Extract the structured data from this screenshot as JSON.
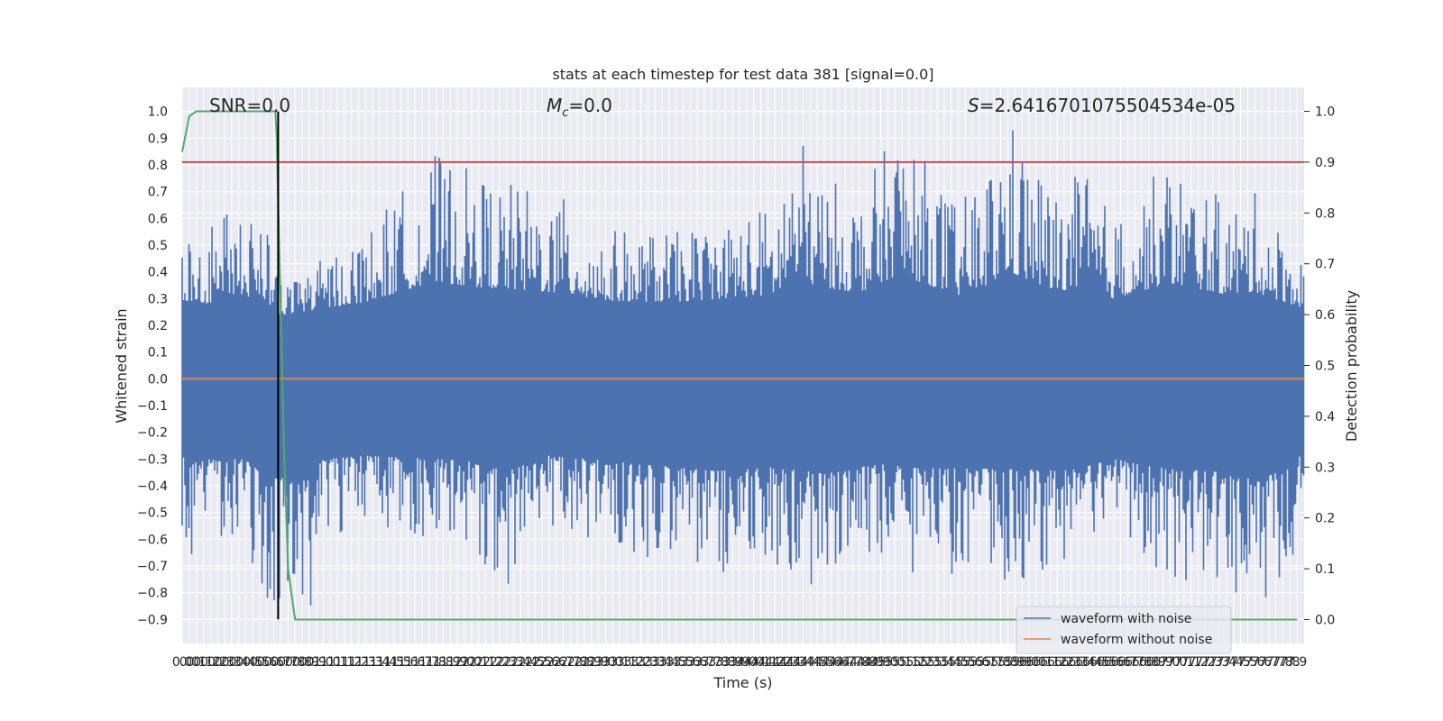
{
  "chart_data": {
    "type": "line",
    "title": "stats at each timestep for test data 381 [signal=0.0]",
    "xlabel": "Time (s)",
    "ylabel": "Whitened strain",
    "y2label": "Detection probability",
    "xlim": [
      0.0,
      7.95
    ],
    "ylim": [
      -0.99,
      1.09
    ],
    "y2lim": [
      -0.047,
      1.047
    ],
    "x_ticks": [
      0.0,
      0.05,
      0.1,
      0.15,
      0.2,
      0.25,
      0.3,
      0.35,
      0.4,
      0.45,
      0.5,
      0.55,
      0.6,
      0.65,
      0.7,
      0.75,
      0.8,
      0.85,
      0.9,
      0.95,
      1.0,
      1.05,
      1.1,
      1.15,
      1.2,
      1.25,
      1.3,
      1.35,
      1.4,
      1.45,
      1.5,
      1.55,
      1.6,
      1.65,
      1.7,
      1.75,
      1.8,
      1.85,
      1.9,
      1.95,
      2.0,
      2.05,
      2.1,
      2.15,
      2.2,
      2.25,
      2.3,
      2.35,
      2.4,
      2.45,
      2.5,
      2.55,
      2.6,
      2.65,
      2.7,
      2.75,
      2.8,
      2.85,
      2.9,
      2.95,
      3.0,
      3.05,
      3.1,
      3.15,
      3.2,
      3.25,
      3.3,
      3.35,
      3.4,
      3.45,
      3.5,
      3.55,
      3.6,
      3.65,
      3.7,
      3.75,
      3.8,
      3.85,
      3.9,
      3.95,
      4.0,
      4.05,
      4.1,
      4.15,
      4.2,
      4.25,
      4.3,
      4.35,
      4.4,
      4.45,
      4.5,
      4.55,
      4.6,
      4.65,
      4.7,
      4.75,
      4.8,
      4.85,
      4.9,
      4.95,
      5.0,
      5.05,
      5.1,
      5.15,
      5.2,
      5.25,
      5.3,
      5.35,
      5.4,
      5.45,
      5.5,
      5.55,
      5.6,
      5.65,
      5.7,
      5.75,
      5.8,
      5.85,
      5.9,
      5.95,
      6.0,
      6.05,
      6.1,
      6.15,
      6.2,
      6.25,
      6.3,
      6.35,
      6.4,
      6.45,
      6.5,
      6.55,
      6.6,
      6.65,
      6.7,
      6.75,
      6.8,
      6.85,
      6.9,
      6.95,
      7.0,
      7.05,
      7.1,
      7.15,
      7.2,
      7.25,
      7.3,
      7.35,
      7.4,
      7.45,
      7.5,
      7.55,
      7.6,
      7.65,
      7.7,
      7.75,
      7.8,
      7.85,
      7.9
    ],
    "x_tick_labels": [
      "0.0",
      "0.0",
      "0.1",
      "0.1",
      "0.2",
      "0.2",
      "0.3",
      "0.3",
      "0.4",
      "0.4",
      "0.5",
      "0.5",
      "0.6",
      "0.6",
      "0.7",
      "0.7",
      "0.8",
      "0.8",
      "0.9",
      "0.9",
      "1.0",
      "1.0",
      "1.1",
      "1.1",
      "1.2",
      "1.2",
      "1.3",
      "1.3",
      "1.4",
      "1.4",
      "1.5",
      "1.5",
      "1.6",
      "1.6",
      "1.7",
      "1.7",
      "1.8",
      "1.8",
      "1.9",
      "1.9",
      "2.0",
      "2.0",
      "2.1",
      "2.1",
      "2.2",
      "2.2",
      "2.3",
      "2.3",
      "2.4",
      "2.4",
      "2.5",
      "2.5",
      "2.6",
      "2.6",
      "2.7",
      "2.7",
      "2.8",
      "2.8",
      "2.9",
      "2.9",
      "3.0",
      "3.0",
      "3.1",
      "3.1",
      "3.2",
      "3.2",
      "3.3",
      "3.3",
      "3.4",
      "3.4",
      "3.5",
      "3.5",
      "3.6",
      "3.6",
      "3.7",
      "3.7",
      "3.8",
      "3.8",
      "3.9",
      "3.9",
      "4.0",
      "4.0",
      "4.1",
      "4.1",
      "4.2",
      "4.2",
      "4.3",
      "4.3",
      "4.4",
      "4.4",
      "4.5",
      "4.5",
      "4.6",
      "4.6",
      "4.7",
      "4.7",
      "4.8",
      "4.8",
      "4.9",
      "4.9",
      "5.0",
      "5.0",
      "5.1",
      "5.1",
      "5.2",
      "5.2",
      "5.3",
      "5.3",
      "5.4",
      "5.4",
      "5.5",
      "5.5",
      "5.6",
      "5.6",
      "5.7",
      "5.7",
      "5.8",
      "5.8",
      "5.9",
      "5.9",
      "6.0",
      "6.0",
      "6.1",
      "6.1",
      "6.2",
      "6.2",
      "6.3",
      "6.3",
      "6.4",
      "6.4",
      "6.5",
      "6.5",
      "6.6",
      "6.6",
      "6.7",
      "6.7",
      "6.8",
      "6.8",
      "6.9",
      "6.9",
      "7.0",
      "7.0",
      "7.1",
      "7.1",
      "7.2",
      "7.2",
      "7.3",
      "7.3",
      "7.4",
      "7.4",
      "7.5",
      "7.5",
      "7.6",
      "7.6",
      "7.7",
      "7.7",
      "7.8",
      "7.8",
      "7.9"
    ],
    "y_ticks": [
      -0.9,
      -0.8,
      -0.7,
      -0.6,
      -0.5,
      -0.4,
      -0.3,
      -0.2,
      -0.1,
      0.0,
      0.1,
      0.2,
      0.3,
      0.4,
      0.5,
      0.6,
      0.7,
      0.8,
      0.9,
      1.0
    ],
    "y_tick_labels": [
      "−0.9",
      "−0.8",
      "−0.7",
      "−0.6",
      "−0.5",
      "−0.4",
      "−0.3",
      "−0.2",
      "−0.1",
      "0.0",
      "0.1",
      "0.2",
      "0.3",
      "0.4",
      "0.5",
      "0.6",
      "0.7",
      "0.8",
      "0.9",
      "1.0"
    ],
    "y2_ticks": [
      0.0,
      0.1,
      0.2,
      0.3,
      0.4,
      0.5,
      0.6,
      0.7,
      0.8,
      0.9,
      1.0
    ],
    "y2_tick_labels": [
      "0.0",
      "0.1",
      "0.2",
      "0.3",
      "0.4",
      "0.5",
      "0.6",
      "0.7",
      "0.8",
      "0.9",
      "1.0"
    ],
    "grid": true,
    "legend_position": "lower-right",
    "annotations": {
      "snr": "SNR=0.0",
      "mc_symbol": "M",
      "mc_subscript": "c",
      "mc_value": "=0.0",
      "s_symbol": "S",
      "s_value": "=2.6416701075504534e-05"
    },
    "series": [
      {
        "name": "waveform with noise",
        "color": "#4c72b0",
        "axis": "left",
        "envelope_upper": [
          [
            0.0,
            0.57
          ],
          [
            0.1,
            0.55
          ],
          [
            0.2,
            0.52
          ],
          [
            0.22,
            0.72
          ],
          [
            0.5,
            0.62
          ],
          [
            0.5,
            0.77
          ],
          [
            0.7,
            0.35
          ],
          [
            0.9,
            0.42
          ],
          [
            1.3,
            0.55
          ],
          [
            1.78,
            0.85
          ],
          [
            2.1,
            0.77
          ],
          [
            2.7,
            0.68
          ],
          [
            3.0,
            0.56
          ],
          [
            3.5,
            0.55
          ],
          [
            4.2,
            0.66
          ],
          [
            4.34,
            0.95
          ],
          [
            4.5,
            0.78
          ],
          [
            4.8,
            0.69
          ],
          [
            5.1,
            0.98
          ],
          [
            5.2,
            0.87
          ],
          [
            5.5,
            0.65
          ],
          [
            5.7,
            0.8
          ],
          [
            5.85,
            1.0
          ],
          [
            6.2,
            0.7
          ],
          [
            6.4,
            0.8
          ],
          [
            6.6,
            0.6
          ],
          [
            7.0,
            0.83
          ],
          [
            7.4,
            0.66
          ],
          [
            7.6,
            0.7
          ],
          [
            7.95,
            0.45
          ]
        ],
        "envelope_lower": [
          [
            0.0,
            -0.55
          ],
          [
            0.05,
            -0.67
          ],
          [
            0.2,
            -0.6
          ],
          [
            0.45,
            -0.6
          ],
          [
            0.6,
            -0.89
          ],
          [
            0.7,
            -0.89
          ],
          [
            0.9,
            -0.89
          ],
          [
            1.0,
            -0.6
          ],
          [
            1.3,
            -0.55
          ],
          [
            2.0,
            -0.62
          ],
          [
            2.3,
            -0.78
          ],
          [
            2.6,
            -0.55
          ],
          [
            3.0,
            -0.62
          ],
          [
            3.4,
            -0.7
          ],
          [
            3.78,
            -0.78
          ],
          [
            4.2,
            -0.72
          ],
          [
            4.55,
            -0.82
          ],
          [
            5.0,
            -0.65
          ],
          [
            5.15,
            -0.73
          ],
          [
            5.8,
            -0.75
          ],
          [
            6.3,
            -0.77
          ],
          [
            6.6,
            -0.6
          ],
          [
            7.0,
            -0.75
          ],
          [
            7.3,
            -0.78
          ],
          [
            7.5,
            -0.88
          ],
          [
            7.8,
            -0.8
          ],
          [
            7.95,
            -0.5
          ]
        ],
        "core_band": [
          -0.2,
          0.2
        ]
      },
      {
        "name": "waveform without noise",
        "color": "#dd8452",
        "axis": "left",
        "x": [
          0.0,
          7.95
        ],
        "y": [
          0.0,
          0.0
        ]
      },
      {
        "color": "#55a868",
        "axis": "right",
        "x": [
          0.0,
          0.05,
          0.1,
          0.15,
          0.66,
          0.67,
          0.72,
          0.75,
          0.8,
          7.9
        ],
        "y": [
          0.92,
          0.99,
          1.0,
          1.0,
          1.0,
          0.95,
          0.35,
          0.1,
          0.0,
          0.0
        ]
      },
      {
        "color": "#c44e52",
        "axis": "right",
        "x": [
          0.0,
          7.95
        ],
        "y": [
          0.9,
          0.9
        ]
      },
      {
        "color": "#000000",
        "axis": "left",
        "x": [
          0.68,
          0.68
        ],
        "y": [
          -0.9,
          1.0
        ]
      }
    ]
  }
}
